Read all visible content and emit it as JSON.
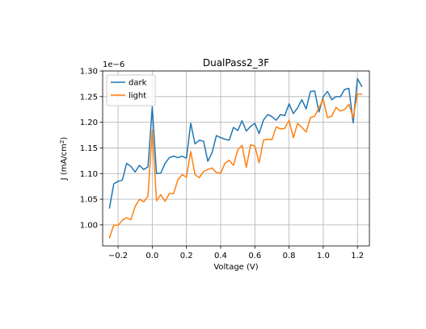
{
  "chart_data": {
    "type": "line",
    "title": "DualPass2_3F",
    "xlabel": "Voltage (V)",
    "ylabel_main": "J (mA/cm",
    "ylabel_sup": "2",
    "ylabel_close": ")",
    "offset_text": "1e−6",
    "xlim": [
      -0.29,
      1.27
    ],
    "ylim": [
      0.959,
      1.3
    ],
    "xticks": [
      -0.2,
      0.0,
      0.2,
      0.4,
      0.6,
      0.8,
      1.0,
      1.2
    ],
    "xtick_labels": [
      "−0.2",
      "0.0",
      "0.2",
      "0.4",
      "0.6",
      "0.8",
      "1.0",
      "1.2"
    ],
    "yticks": [
      1.0,
      1.05,
      1.1,
      1.15,
      1.2,
      1.25,
      1.3
    ],
    "ytick_labels": [
      "1.00",
      "1.05",
      "1.10",
      "1.15",
      "1.20",
      "1.25",
      "1.30"
    ],
    "grid": true,
    "legend_position": "top-left",
    "x": [
      -0.25,
      -0.225,
      -0.2,
      -0.175,
      -0.15,
      -0.125,
      -0.1,
      -0.075,
      -0.05,
      -0.025,
      0.0,
      0.025,
      0.05,
      0.075,
      0.1,
      0.125,
      0.15,
      0.175,
      0.2,
      0.225,
      0.25,
      0.275,
      0.3,
      0.325,
      0.35,
      0.375,
      0.4,
      0.425,
      0.45,
      0.475,
      0.5,
      0.525,
      0.55,
      0.575,
      0.6,
      0.625,
      0.65,
      0.675,
      0.7,
      0.725,
      0.75,
      0.775,
      0.8,
      0.825,
      0.85,
      0.875,
      0.9,
      0.925,
      0.95,
      0.975,
      1.0,
      1.025,
      1.05,
      1.075,
      1.1,
      1.125,
      1.15,
      1.175,
      1.2,
      1.225
    ],
    "series": [
      {
        "name": "dark",
        "color": "#1f77b4",
        "values": [
          1.033,
          1.08,
          1.085,
          1.087,
          1.12,
          1.114,
          1.103,
          1.116,
          1.108,
          1.113,
          1.23,
          1.1,
          1.101,
          1.12,
          1.131,
          1.134,
          1.131,
          1.134,
          1.13,
          1.198,
          1.158,
          1.165,
          1.163,
          1.124,
          1.141,
          1.174,
          1.17,
          1.167,
          1.165,
          1.19,
          1.184,
          1.203,
          1.183,
          1.192,
          1.198,
          1.178,
          1.204,
          1.215,
          1.211,
          1.204,
          1.215,
          1.213,
          1.236,
          1.217,
          1.228,
          1.244,
          1.226,
          1.26,
          1.261,
          1.22,
          1.25,
          1.26,
          1.244,
          1.25,
          1.25,
          1.264,
          1.266,
          1.199,
          1.285,
          1.27
        ]
      },
      {
        "name": "light",
        "color": "#ff7f0e",
        "values": [
          0.975,
          1.0,
          0.999,
          1.009,
          1.014,
          1.01,
          1.036,
          1.05,
          1.045,
          1.056,
          1.185,
          1.047,
          1.059,
          1.046,
          1.061,
          1.061,
          1.088,
          1.098,
          1.093,
          1.143,
          1.098,
          1.092,
          1.104,
          1.108,
          1.111,
          1.102,
          1.101,
          1.12,
          1.126,
          1.116,
          1.146,
          1.155,
          1.112,
          1.156,
          1.154,
          1.121,
          1.165,
          1.167,
          1.166,
          1.191,
          1.187,
          1.188,
          1.204,
          1.17,
          1.198,
          1.19,
          1.181,
          1.209,
          1.212,
          1.228,
          1.245,
          1.209,
          1.212,
          1.229,
          1.222,
          1.225,
          1.235,
          1.209,
          1.255,
          1.255
        ]
      }
    ]
  }
}
